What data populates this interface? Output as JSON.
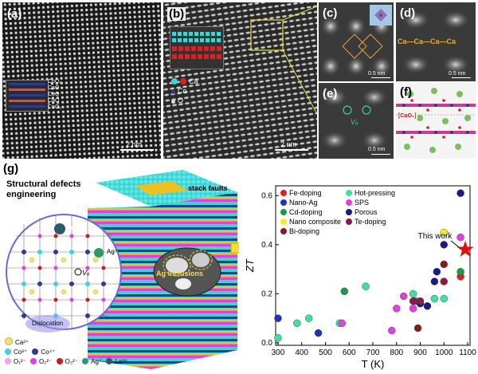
{
  "panels": {
    "a": {
      "label": "(a)",
      "scale": "2 nm",
      "inset_labels": [
        "CoO₂",
        "CaO",
        "CoO",
        "CaO",
        "CoO₂"
      ]
    },
    "b": {
      "label": "(b)",
      "scale": "2 nm",
      "legend": [
        "Ca",
        "Co",
        "O"
      ]
    },
    "c": {
      "label": "(c)",
      "scale": "0.5 nm"
    },
    "d": {
      "label": "(d)",
      "scale": "0.5 nm",
      "chain": "Ca—Ca—Ca—Ca"
    },
    "e": {
      "label": "(e)",
      "scale": "0.5 nm",
      "vacancy": "Vₒ"
    },
    "f": {
      "label": "(f)",
      "tag": "[CoO₂]"
    },
    "g": {
      "label": "(g)",
      "title_line1": "Structural defects",
      "title_line2": "engineering",
      "stack_faults": "stack faults",
      "ag_inclusions": "Ag inclusions",
      "dislocation": "Dislocation",
      "vo": "Vₒ",
      "ca_ion": "Ca²⁺",
      "ag_ion": "Ag⁺",
      "la_ion": "La³⁺",
      "ion_legend": [
        "Ca²⁺",
        "Co³⁺",
        "Co⁴⁺",
        "O₁²⁻",
        "O₂²⁻",
        "O₃²⁻",
        "Ag⁺",
        "La³⁺"
      ]
    }
  },
  "colors": {
    "ca": "#f5e94a",
    "co3": "#3fd3d3",
    "co4": "#2b3c8f",
    "o1": "#f0a0f0",
    "o2": "#e040e0",
    "o3": "#cc1b1b",
    "ag": "#2a9a6a",
    "la": "#2c5a6a"
  },
  "chart_data": {
    "type": "scatter",
    "xlabel": "T (K)",
    "ylabel": "ZT",
    "xlim": [
      290,
      1110
    ],
    "ylim": [
      -0.01,
      0.64
    ],
    "xticks": [
      300,
      400,
      500,
      600,
      700,
      800,
      900,
      1000,
      1100
    ],
    "yticks": [
      0.0,
      0.2,
      0.4,
      0.6
    ],
    "xtick_labels": [
      "300",
      "400",
      "500",
      "600",
      "700",
      "800",
      "900",
      "1000",
      "1100"
    ],
    "ytick_labels": [
      "0.0",
      "0.2",
      "0.4",
      "0.6"
    ],
    "annotation": "This work",
    "star": {
      "x": 1090,
      "y": 0.38
    },
    "series": [
      {
        "name": "Fe-doping",
        "color": "#e02020",
        "points": [
          [
            1070,
            0.27
          ]
        ]
      },
      {
        "name": "Nano-Ag",
        "color": "#2030c0",
        "points": [
          [
            300,
            0.1
          ],
          [
            470,
            0.04
          ]
        ]
      },
      {
        "name": "Cd-doping",
        "color": "#1a9a50",
        "points": [
          [
            580,
            0.21
          ],
          [
            880,
            0.17
          ],
          [
            1070,
            0.29
          ]
        ]
      },
      {
        "name": "Nano composite",
        "color": "#f0f020",
        "points": [
          [
            1000,
            0.45
          ]
        ]
      },
      {
        "name": "Bi-doping",
        "color": "#8a1a1a",
        "points": [
          [
            890,
            0.06
          ],
          [
            1000,
            0.32
          ]
        ]
      },
      {
        "name": "Hot-pressing",
        "color": "#40e0a0",
        "points": [
          [
            300,
            0.02
          ],
          [
            380,
            0.08
          ],
          [
            430,
            0.1
          ],
          [
            560,
            0.08
          ],
          [
            670,
            0.23
          ],
          [
            870,
            0.2
          ],
          [
            960,
            0.18
          ],
          [
            1000,
            0.18
          ]
        ]
      },
      {
        "name": "SPS",
        "color": "#e040e0",
        "points": [
          [
            570,
            0.08
          ],
          [
            780,
            0.05
          ],
          [
            800,
            0.14
          ],
          [
            830,
            0.19
          ],
          [
            870,
            0.14
          ],
          [
            1070,
            0.43
          ]
        ]
      },
      {
        "name": "Porous",
        "color": "#1a1a80",
        "points": [
          [
            900,
            0.16
          ],
          [
            930,
            0.15
          ],
          [
            960,
            0.25
          ],
          [
            970,
            0.29
          ],
          [
            1000,
            0.4
          ],
          [
            1070,
            0.61
          ]
        ]
      },
      {
        "name": "Te-doping",
        "color": "#8a1a4a",
        "points": [
          [
            870,
            0.17
          ],
          [
            900,
            0.17
          ],
          [
            1000,
            0.25
          ]
        ]
      }
    ]
  }
}
